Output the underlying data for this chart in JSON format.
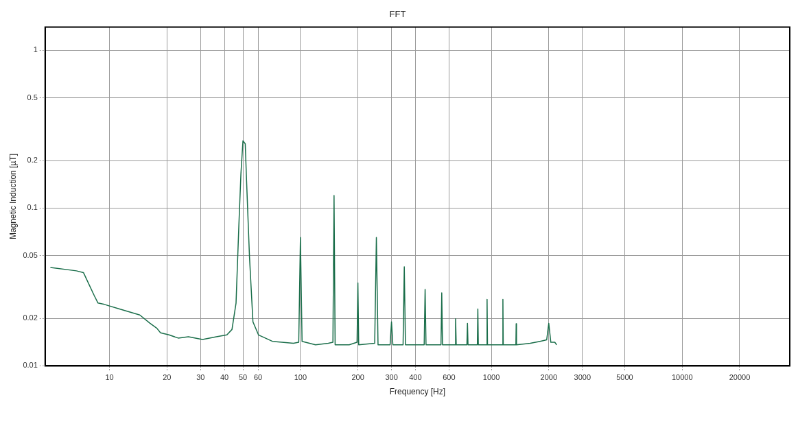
{
  "chart_data": {
    "type": "line",
    "title": "FFT",
    "xlabel": "Frequency [Hz]",
    "ylabel": "Magnetic Induction [µT]",
    "log": "xy",
    "grid": true,
    "legend": false,
    "marker": "none",
    "line_style": "solid",
    "xlim": [
      4.6,
      36600
    ],
    "xticks": [
      10,
      20,
      30,
      40,
      50,
      60,
      100,
      200,
      300,
      400,
      600,
      1000,
      2000,
      3000,
      5000,
      10000,
      20000
    ],
    "ylim": [
      0.01,
      1.4
    ],
    "yticks": [
      0.01,
      0.02,
      0.05,
      0.1,
      0.2,
      0.5,
      1
    ],
    "series": [
      {
        "color": "#1a6e4a",
        "x": [
          4.9,
          6.7,
          7.3,
          8.3,
          8.7,
          9.4,
          11.2,
          14.4,
          16.3,
          17.7,
          18.5,
          20.5,
          22.9,
          25.9,
          30.7,
          36.3,
          41.2,
          43.8,
          46,
          47.6,
          48.8,
          50,
          51.4,
          52.2,
          54.1,
          56.4,
          60.3,
          71.3,
          91.9,
          98,
          100,
          102,
          120,
          140,
          148,
          150,
          152,
          180,
          198,
          200,
          202,
          245,
          250,
          255,
          295,
          300,
          305,
          345,
          350,
          355,
          445,
          450,
          455,
          545,
          550,
          555,
          645,
          650,
          655,
          745,
          750,
          755,
          845,
          850,
          855,
          945,
          950,
          955,
          1145,
          1150,
          1155,
          1345,
          1350,
          1355,
          1600,
          1800,
          1950,
          2000,
          2050,
          2150,
          2200
        ],
        "values": [
          0.042,
          0.04,
          0.039,
          0.028,
          0.025,
          0.0245,
          0.023,
          0.021,
          0.0186,
          0.0173,
          0.0162,
          0.0157,
          0.015,
          0.0153,
          0.0147,
          0.0153,
          0.0157,
          0.017,
          0.025,
          0.078,
          0.166,
          0.267,
          0.255,
          0.151,
          0.049,
          0.019,
          0.0157,
          0.0143,
          0.0139,
          0.0141,
          0.065,
          0.0143,
          0.0136,
          0.0139,
          0.0141,
          0.12,
          0.0136,
          0.0136,
          0.0141,
          0.0335,
          0.0136,
          0.0139,
          0.065,
          0.0136,
          0.0136,
          0.019,
          0.0136,
          0.0136,
          0.0424,
          0.0136,
          0.0136,
          0.0305,
          0.0136,
          0.0136,
          0.029,
          0.0136,
          0.0136,
          0.0199,
          0.0136,
          0.0136,
          0.0186,
          0.0136,
          0.0136,
          0.0229,
          0.0136,
          0.0136,
          0.0264,
          0.0136,
          0.0136,
          0.0264,
          0.0136,
          0.0136,
          0.0185,
          0.0136,
          0.0139,
          0.0143,
          0.0146,
          0.0186,
          0.0141,
          0.0141,
          0.0136
        ]
      }
    ]
  }
}
